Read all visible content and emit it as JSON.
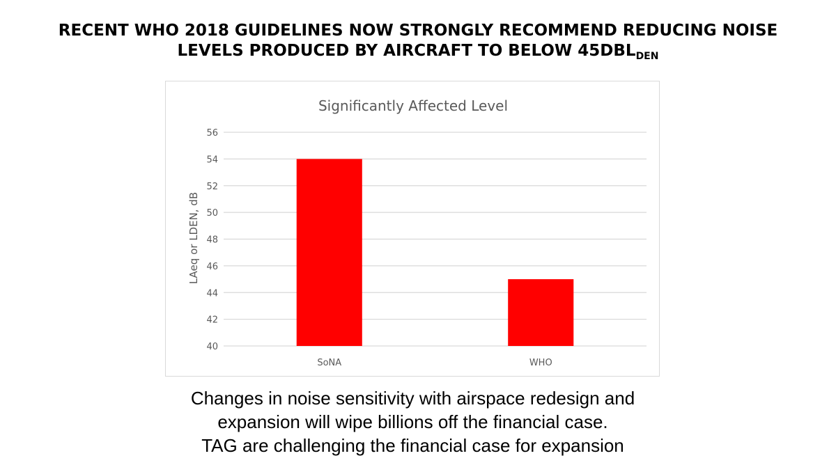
{
  "headline": {
    "line1": "RECENT WHO 2018 GUIDELINES NOW STRONGLY RECOMMEND REDUCING NOISE",
    "line2": "LEVELS PRODUCED BY AIRCRAFT TO BELOW 45DBL",
    "subscript": "DEN"
  },
  "chart_data": {
    "type": "bar",
    "title": "Significantly Affected Level",
    "xlabel": "",
    "ylabel": "LAeq or LDEN, dB",
    "categories": [
      "SoNA",
      "WHO"
    ],
    "values": [
      54,
      45
    ],
    "ylim": [
      40,
      56
    ],
    "yticks": [
      "40",
      "42",
      "44",
      "46",
      "48",
      "50",
      "52",
      "54",
      "56"
    ],
    "grid": true,
    "bar_color": "#ff0000",
    "grid_color": "#d9d9d9",
    "text_color": "#595959"
  },
  "caption": {
    "line1": "Changes in noise sensitivity with airspace redesign and",
    "line2": "expansion will wipe billions off the financial case.",
    "line3": "TAG are challenging the financial case for expansion"
  }
}
